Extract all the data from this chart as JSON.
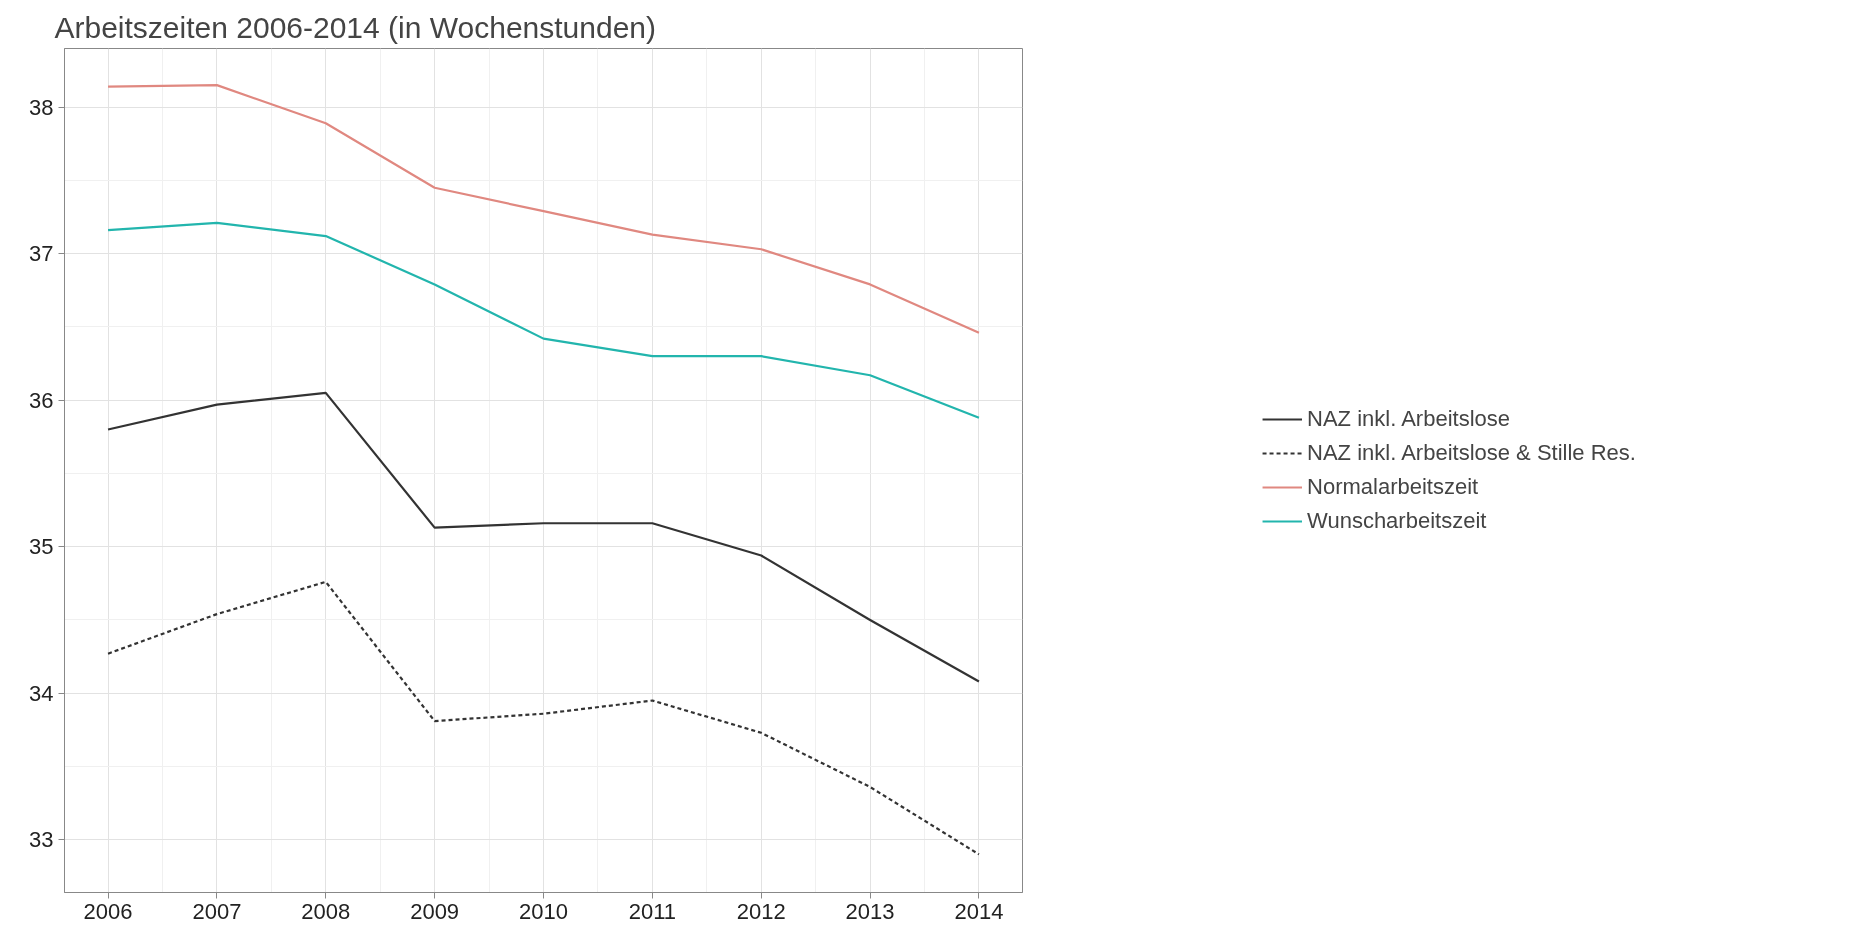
{
  "chart_data": {
    "type": "line",
    "title": "Arbeitszeiten 2006-2014 (in Wochenstunden)",
    "x": [
      2006,
      2007,
      2008,
      2009,
      2010,
      2011,
      2012,
      2013,
      2014
    ],
    "series": [
      {
        "name": "NAZ inkl. Arbeitslose",
        "color": "#333333",
        "line_style": "solid",
        "values": [
          35.8,
          35.97,
          36.05,
          35.13,
          35.16,
          35.16,
          34.94,
          34.5,
          34.08
        ]
      },
      {
        "name": "NAZ inkl. Arbeitslose & Stille Res.",
        "color": "#333333",
        "line_style": "dashed",
        "values": [
          34.27,
          34.54,
          34.76,
          33.81,
          33.86,
          33.95,
          33.73,
          33.36,
          32.9
        ]
      },
      {
        "name": "Normalarbeitszeit",
        "color": "#e08880",
        "line_style": "solid",
        "values": [
          38.14,
          38.15,
          37.89,
          37.45,
          37.29,
          37.13,
          37.03,
          36.79,
          36.46
        ]
      },
      {
        "name": "Wunscharbeitszeit",
        "color": "#22b5ad",
        "line_style": "solid",
        "values": [
          37.16,
          37.21,
          37.12,
          36.79,
          36.42,
          36.3,
          36.3,
          36.17,
          35.88
        ]
      }
    ],
    "xlim": [
      2005.6,
      2014.4
    ],
    "xticks": [
      2006,
      2007,
      2008,
      2009,
      2010,
      2011,
      2012,
      2013,
      2014
    ],
    "ylim": [
      32.64,
      38.4
    ],
    "yticks": [
      33,
      34,
      35,
      36,
      37,
      38
    ],
    "grid": true,
    "legend": "right"
  }
}
